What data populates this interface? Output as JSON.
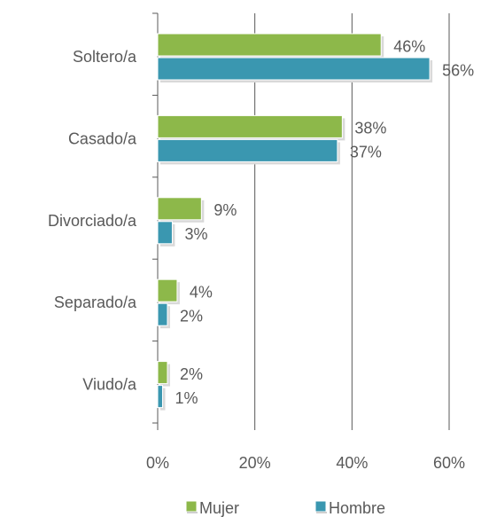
{
  "chart_data": {
    "type": "barh",
    "categories": [
      "Soltero/a",
      "Casado/a",
      "Divorciado/a",
      "Separado/a",
      "Viudo/a"
    ],
    "series": [
      {
        "name": "Mujer",
        "color": "#8db84a",
        "values": [
          46,
          38,
          9,
          4,
          2
        ],
        "value_labels": [
          "46%",
          "38%",
          "9%",
          "4%",
          "2%"
        ]
      },
      {
        "name": "Hombre",
        "color": "#3a97b0",
        "values": [
          56,
          37,
          3,
          2,
          1
        ],
        "value_labels": [
          "56%",
          "37%",
          "3%",
          "2%",
          "1%"
        ]
      }
    ],
    "xlim": [
      0,
      60
    ],
    "xticks": [
      {
        "value": 0,
        "label": "0%"
      },
      {
        "value": 20,
        "label": "20%"
      },
      {
        "value": 40,
        "label": "40%"
      },
      {
        "value": 60,
        "label": "60%"
      }
    ],
    "grid": true,
    "legend": "bottom"
  }
}
